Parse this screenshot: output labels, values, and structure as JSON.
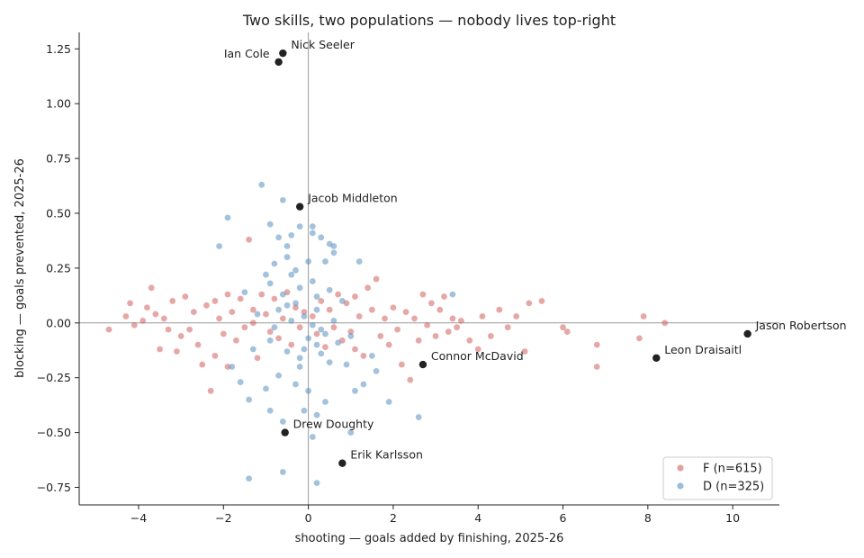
{
  "chart_data": {
    "type": "scatter",
    "title": "Two skills, two populations — nobody lives top-right",
    "xlabel": "shooting — goals added by finishing, 2025-26",
    "ylabel": "blocking — goals prevented, 2025-26",
    "xlim": [
      -5.4,
      11.1
    ],
    "ylim": [
      -0.83,
      1.325
    ],
    "x_ticks": [
      -4,
      -2,
      0,
      2,
      4,
      6,
      8,
      10
    ],
    "y_ticks": [
      -0.75,
      -0.5,
      -0.25,
      0.0,
      0.25,
      0.5,
      0.75,
      1.0,
      1.25
    ],
    "x_tick_labels": [
      "−4",
      "−2",
      "0",
      "2",
      "4",
      "6",
      "8",
      "10"
    ],
    "y_tick_labels": [
      "−0.75",
      "−0.50",
      "−0.25",
      "0.00",
      "0.25",
      "0.50",
      "0.75",
      "1.00",
      "1.25"
    ],
    "reference_lines": {
      "x": 0,
      "y": 0
    },
    "grid": false,
    "legend_position": "bottom-right",
    "colors": {
      "F": "#d1615d",
      "D": "#5b8fbf",
      "highlight": "#222222",
      "refline": "#9a9a9a"
    },
    "series": [
      {
        "name": "F (n=615)",
        "color": "#d1615d",
        "points": [
          [
            -4.7,
            -0.03
          ],
          [
            -4.3,
            0.03
          ],
          [
            -4.2,
            0.09
          ],
          [
            -4.1,
            -0.01
          ],
          [
            -3.9,
            0.01
          ],
          [
            -3.8,
            0.07
          ],
          [
            -3.7,
            0.16
          ],
          [
            -3.6,
            0.04
          ],
          [
            -3.5,
            -0.12
          ],
          [
            -3.4,
            0.02
          ],
          [
            -3.3,
            -0.03
          ],
          [
            -3.2,
            0.1
          ],
          [
            -3.0,
            -0.06
          ],
          [
            -2.9,
            0.12
          ],
          [
            -2.8,
            -0.03
          ],
          [
            -2.7,
            0.05
          ],
          [
            -2.6,
            -0.1
          ],
          [
            -2.5,
            -0.19
          ],
          [
            -2.4,
            0.08
          ],
          [
            -2.3,
            -0.31
          ],
          [
            -2.2,
            0.1
          ],
          [
            -2.1,
            0.02
          ],
          [
            -2.0,
            -0.05
          ],
          [
            -1.9,
            0.13
          ],
          [
            -1.8,
            0.05
          ],
          [
            -1.7,
            -0.08
          ],
          [
            -1.6,
            0.11
          ],
          [
            -1.5,
            -0.02
          ],
          [
            -1.4,
            0.38
          ],
          [
            -1.3,
            0.06
          ],
          [
            -1.2,
            -0.16
          ],
          [
            -1.1,
            0.13
          ],
          [
            -1.0,
            0.04
          ],
          [
            -0.9,
            -0.04
          ],
          [
            -0.8,
            0.11
          ],
          [
            -0.7,
            -0.07
          ],
          [
            -0.6,
            0.02
          ],
          [
            -0.5,
            0.14
          ],
          [
            -0.4,
            -0.1
          ],
          [
            -0.3,
            0.07
          ],
          [
            -0.2,
            -0.02
          ],
          [
            -0.1,
            0.05
          ],
          [
            0.1,
            0.03
          ],
          [
            0.2,
            -0.05
          ],
          [
            0.3,
            0.1
          ],
          [
            0.4,
            -0.11
          ],
          [
            0.5,
            0.06
          ],
          [
            0.6,
            -0.02
          ],
          [
            0.7,
            0.13
          ],
          [
            0.8,
            -0.08
          ],
          [
            0.9,
            0.09
          ],
          [
            1.0,
            -0.04
          ],
          [
            1.1,
            0.12
          ],
          [
            1.2,
            0.03
          ],
          [
            1.3,
            -0.15
          ],
          [
            1.4,
            0.16
          ],
          [
            1.5,
            0.06
          ],
          [
            1.6,
            0.2
          ],
          [
            1.7,
            -0.06
          ],
          [
            1.8,
            0.02
          ],
          [
            1.9,
            -0.1
          ],
          [
            2.0,
            0.07
          ],
          [
            2.1,
            -0.03
          ],
          [
            2.2,
            -0.19
          ],
          [
            2.3,
            0.05
          ],
          [
            2.4,
            -0.26
          ],
          [
            2.5,
            0.02
          ],
          [
            2.6,
            -0.08
          ],
          [
            2.7,
            0.13
          ],
          [
            2.8,
            -0.01
          ],
          [
            2.9,
            0.09
          ],
          [
            3.0,
            -0.06
          ],
          [
            3.1,
            0.06
          ],
          [
            3.2,
            0.12
          ],
          [
            3.3,
            -0.04
          ],
          [
            3.4,
            0.02
          ],
          [
            3.5,
            -0.02
          ],
          [
            3.6,
            0.01
          ],
          [
            3.8,
            -0.08
          ],
          [
            4.0,
            -0.12
          ],
          [
            4.1,
            0.03
          ],
          [
            4.3,
            -0.06
          ],
          [
            4.5,
            0.06
          ],
          [
            4.7,
            -0.02
          ],
          [
            4.9,
            0.03
          ],
          [
            5.1,
            -0.13
          ],
          [
            5.2,
            0.09
          ],
          [
            5.5,
            0.1
          ],
          [
            6.0,
            -0.02
          ],
          [
            6.1,
            -0.04
          ],
          [
            6.8,
            -0.1
          ],
          [
            6.8,
            -0.2
          ],
          [
            7.8,
            -0.07
          ],
          [
            7.9,
            0.03
          ],
          [
            8.4,
            0.0
          ],
          [
            -1.9,
            -0.2
          ],
          [
            -3.1,
            -0.13
          ],
          [
            -2.2,
            -0.15
          ],
          [
            -1.3,
            0.0
          ],
          [
            1.1,
            -0.12
          ]
        ]
      },
      {
        "name": "D (n=325)",
        "color": "#5b8fbf",
        "points": [
          [
            -1.1,
            0.63
          ],
          [
            -0.6,
            0.56
          ],
          [
            -1.9,
            0.48
          ],
          [
            -0.9,
            0.45
          ],
          [
            -0.4,
            0.4
          ],
          [
            -2.1,
            0.35
          ],
          [
            -0.7,
            0.39
          ],
          [
            -0.2,
            0.44
          ],
          [
            0.1,
            0.41
          ],
          [
            0.3,
            0.39
          ],
          [
            0.5,
            0.36
          ],
          [
            -0.5,
            0.35
          ],
          [
            0.6,
            0.35
          ],
          [
            0.1,
            0.44
          ],
          [
            -1.0,
            0.22
          ],
          [
            -0.8,
            0.27
          ],
          [
            -0.5,
            0.3
          ],
          [
            -0.3,
            0.24
          ],
          [
            0.0,
            0.28
          ],
          [
            0.4,
            0.28
          ],
          [
            1.2,
            0.28
          ],
          [
            -1.5,
            0.14
          ],
          [
            -0.9,
            0.18
          ],
          [
            -0.6,
            0.13
          ],
          [
            -0.2,
            0.16
          ],
          [
            0.2,
            0.12
          ],
          [
            0.5,
            0.15
          ],
          [
            0.8,
            0.1
          ],
          [
            -1.2,
            0.04
          ],
          [
            -0.7,
            0.06
          ],
          [
            -0.4,
            0.01
          ],
          [
            -0.1,
            0.03
          ],
          [
            0.1,
            -0.01
          ],
          [
            0.3,
            -0.03
          ],
          [
            0.6,
            0.01
          ],
          [
            1.0,
            -0.06
          ],
          [
            -1.3,
            -0.12
          ],
          [
            -0.9,
            -0.08
          ],
          [
            -0.5,
            -0.13
          ],
          [
            -0.2,
            -0.16
          ],
          [
            0.2,
            -0.1
          ],
          [
            0.5,
            -0.18
          ],
          [
            0.9,
            -0.19
          ],
          [
            1.5,
            -0.15
          ],
          [
            -1.6,
            -0.27
          ],
          [
            -1.0,
            -0.3
          ],
          [
            -0.7,
            -0.24
          ],
          [
            -0.3,
            -0.28
          ],
          [
            0.0,
            -0.31
          ],
          [
            0.4,
            -0.36
          ],
          [
            1.3,
            -0.28
          ],
          [
            1.9,
            -0.36
          ],
          [
            -1.4,
            -0.35
          ],
          [
            -0.6,
            -0.45
          ],
          [
            -0.1,
            -0.4
          ],
          [
            0.2,
            -0.42
          ],
          [
            -0.9,
            -0.4
          ],
          [
            1.0,
            -0.5
          ],
          [
            0.1,
            -0.52
          ],
          [
            2.6,
            -0.43
          ],
          [
            -1.4,
            -0.71
          ],
          [
            -0.6,
            -0.68
          ],
          [
            0.2,
            -0.73
          ],
          [
            1.1,
            -0.31
          ],
          [
            0.4,
            -0.05
          ],
          [
            -0.3,
            0.09
          ],
          [
            0.0,
            -0.07
          ],
          [
            -0.1,
            -0.12
          ],
          [
            0.2,
            0.06
          ],
          [
            -0.5,
            0.08
          ],
          [
            0.3,
            -0.14
          ],
          [
            -0.8,
            -0.02
          ],
          [
            0.7,
            -0.09
          ],
          [
            -0.2,
            -0.2
          ],
          [
            0.1,
            0.19
          ],
          [
            3.4,
            0.13
          ],
          [
            1.6,
            -0.22
          ],
          [
            -1.8,
            -0.2
          ],
          [
            0.6,
            0.32
          ],
          [
            -0.4,
            0.22
          ]
        ]
      }
    ],
    "annotations": [
      {
        "label": "Nick Seeler",
        "x": -0.6,
        "y": 1.23,
        "side": "right"
      },
      {
        "label": "Ian Cole",
        "x": -0.7,
        "y": 1.19,
        "side": "left"
      },
      {
        "label": "Jacob Middleton",
        "x": -0.2,
        "y": 0.53,
        "side": "right"
      },
      {
        "label": "Jason Robertson",
        "x": 10.35,
        "y": -0.05,
        "side": "right"
      },
      {
        "label": "Leon Draisaitl",
        "x": 8.2,
        "y": -0.16,
        "side": "right"
      },
      {
        "label": "Connor McDavid",
        "x": 2.7,
        "y": -0.19,
        "side": "right"
      },
      {
        "label": "Drew Doughty",
        "x": -0.55,
        "y": -0.5,
        "side": "right"
      },
      {
        "label": "Erik Karlsson",
        "x": 0.8,
        "y": -0.64,
        "side": "right"
      }
    ]
  },
  "legend": {
    "items": [
      {
        "label": "F (n=615)",
        "color": "#d1615d"
      },
      {
        "label": "D (n=325)",
        "color": "#5b8fbf"
      }
    ]
  }
}
